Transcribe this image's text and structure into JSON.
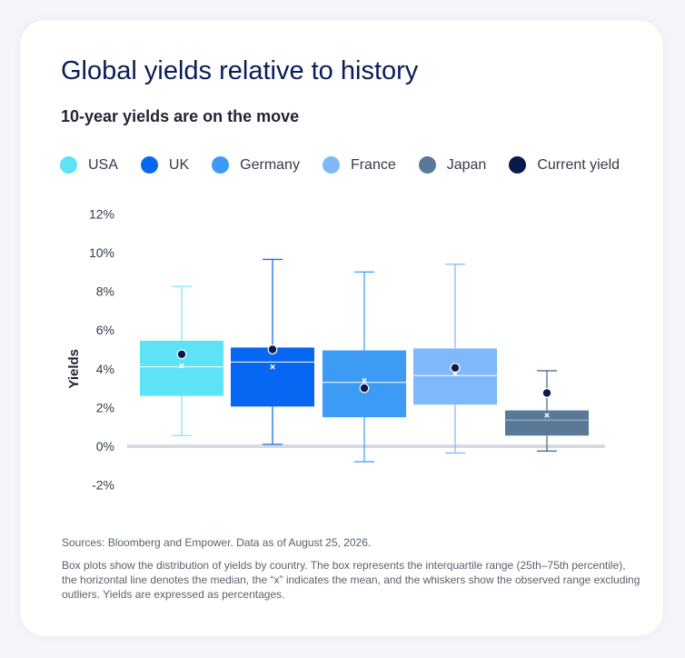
{
  "title": "Global yields relative to history",
  "subtitle": "10-year yields are on the move",
  "legend": [
    {
      "label": "USA",
      "color": "#5de3f5"
    },
    {
      "label": "UK",
      "color": "#0867f2"
    },
    {
      "label": "Germany",
      "color": "#3b9bf5"
    },
    {
      "label": "France",
      "color": "#7fb8fb"
    },
    {
      "label": "Japan",
      "color": "#5a7898"
    },
    {
      "label": "Current yield",
      "color": "#0b1a4b"
    }
  ],
  "chart_data": {
    "type": "box",
    "ylabel": "Yields",
    "ylim": [
      -2,
      12
    ],
    "yticks": [
      -2,
      0,
      2,
      4,
      6,
      8,
      10,
      12
    ],
    "ytick_labels": [
      "-2%",
      "0%",
      "2%",
      "4%",
      "6%",
      "8%",
      "10%",
      "12%"
    ],
    "series": [
      {
        "name": "USA",
        "color": "#5de3f5",
        "line_color": "#7fe6f7",
        "median_color": "#ffffff",
        "whisker_min": 0.55,
        "q1": 2.6,
        "median": 4.1,
        "q3": 5.45,
        "whisker_max": 8.25,
        "mean": 4.15,
        "current": 4.75
      },
      {
        "name": "UK",
        "color": "#0867f2",
        "line_color": "#1c6ff0",
        "median_color": "#ffffff",
        "whisker_min": 0.1,
        "q1": 2.05,
        "median": 4.35,
        "q3": 5.1,
        "whisker_max": 9.65,
        "mean": 4.1,
        "current": 5.0
      },
      {
        "name": "Germany",
        "color": "#3b9bf5",
        "line_color": "#4da3f6",
        "median_color": "#ffffff",
        "whisker_min": -0.8,
        "q1": 1.5,
        "median": 3.3,
        "q3": 4.95,
        "whisker_max": 9.0,
        "mean": 3.4,
        "current": 3.0
      },
      {
        "name": "France",
        "color": "#7fb8fb",
        "line_color": "#86bbfa",
        "median_color": "#ffffff",
        "whisker_min": -0.35,
        "q1": 2.15,
        "median": 3.65,
        "q3": 5.05,
        "whisker_max": 9.4,
        "mean": 3.75,
        "current": 4.05
      },
      {
        "name": "Japan",
        "color": "#5a7898",
        "line_color": "#4f6f92",
        "median_color": "#a9bdd0",
        "whisker_min": -0.25,
        "q1": 0.55,
        "median": 1.35,
        "q3": 1.85,
        "whisker_max": 3.9,
        "mean": 1.6,
        "current": 2.75
      }
    ],
    "current_color": "#0b1a4b",
    "baseline_color": "#d6dbe2"
  },
  "sources": "Sources: Bloomberg and Empower. Data as of August 25, 2026.",
  "note": "Box plots show the distribution of yields by country. The box represents the interquartile range (25th–75th percentile), the horizontal line denotes the median, the “x” indicates the mean, and the whiskers show the observed range excluding outliers. Yields are expressed as percentages."
}
